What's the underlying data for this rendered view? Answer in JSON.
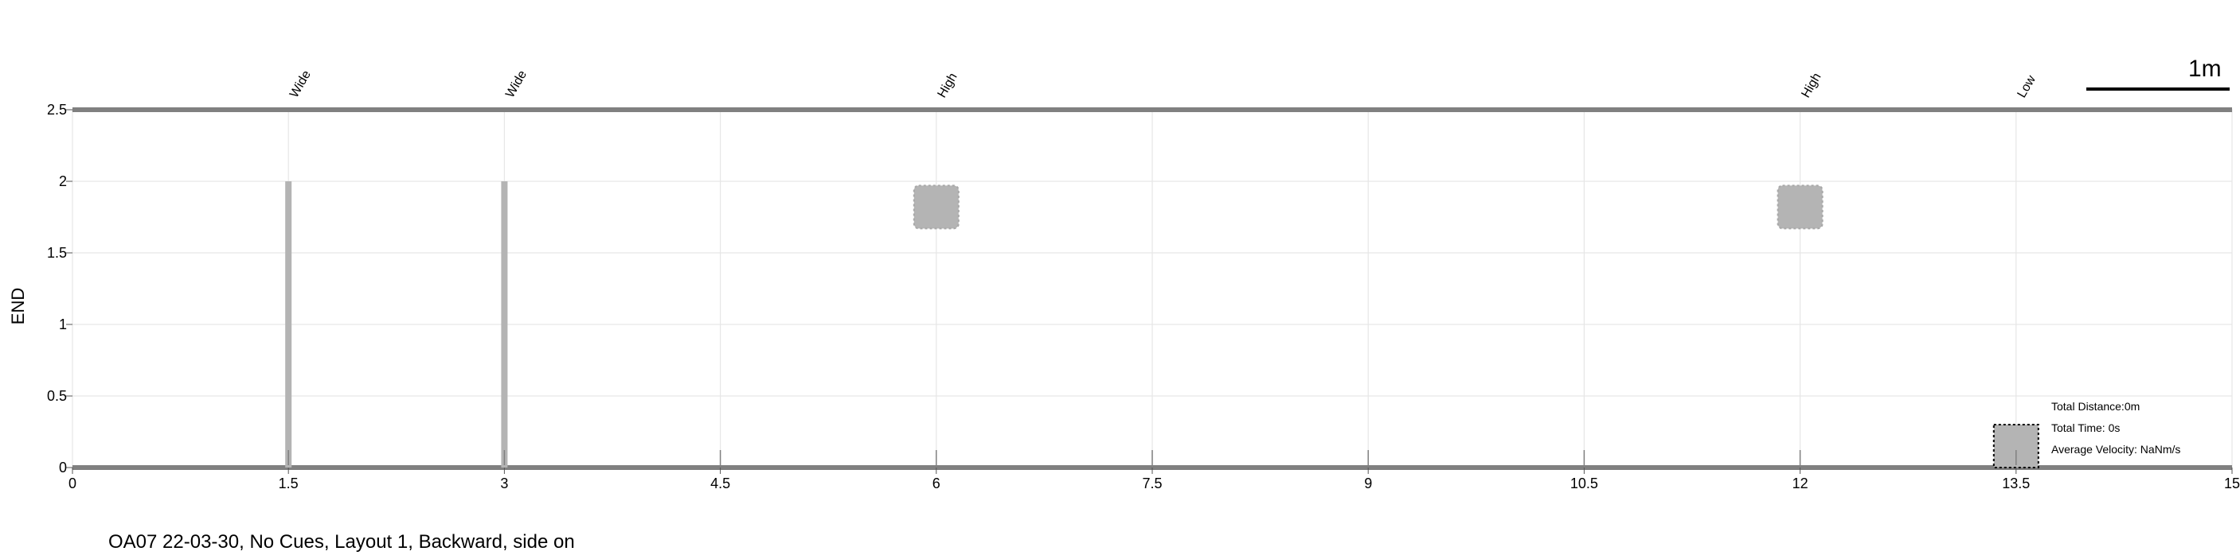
{
  "chart_data": {
    "type": "scatter",
    "ylabel": "END",
    "xlim": [
      0,
      15
    ],
    "ylim": [
      0,
      2.5
    ],
    "x_ticks": [
      0,
      1.5,
      3,
      4.5,
      6,
      7.5,
      9,
      10.5,
      12,
      13.5,
      15
    ],
    "x_tick_labels": [
      "0",
      "1.5",
      "3",
      "4.5",
      "6",
      "7.5",
      "9",
      "10.5",
      "12",
      "13.5",
      "15"
    ],
    "y_ticks": [
      0,
      0.5,
      1,
      1.5,
      2,
      2.5
    ],
    "y_tick_labels": [
      "0",
      "0.5",
      "1",
      "1.5",
      "2",
      "2.5"
    ],
    "grid": true,
    "obstacles": [
      {
        "label": "Wide",
        "x": 1.5,
        "kind": "wide",
        "y_top": 2.0
      },
      {
        "label": "Wide",
        "x": 3,
        "kind": "wide",
        "y_top": 2.0
      },
      {
        "label": "High",
        "x": 6,
        "kind": "high",
        "y_bottom": 1.67,
        "y_top": 1.97
      },
      {
        "label": "High",
        "x": 12,
        "kind": "high",
        "y_bottom": 1.67,
        "y_top": 1.97
      },
      {
        "label": "Low",
        "x": 13.5,
        "kind": "low",
        "y_top": 0.3
      }
    ],
    "step_markers_x": [
      1.5,
      3,
      4.5,
      6,
      7.5,
      9,
      10.5,
      12,
      13.5
    ],
    "colors": {
      "axis_band": "#808080",
      "obstacle": "#b4b4b4",
      "grid": "#e6e6e6"
    }
  },
  "scale": {
    "label": "1m"
  },
  "stats": {
    "distance": "Total Distance:0m",
    "time": "Total Time: 0s",
    "velocity": "Average Velocity: NaNm/s"
  },
  "caption": "OA07 22-03-30, No Cues, Layout 1, Backward, side on"
}
